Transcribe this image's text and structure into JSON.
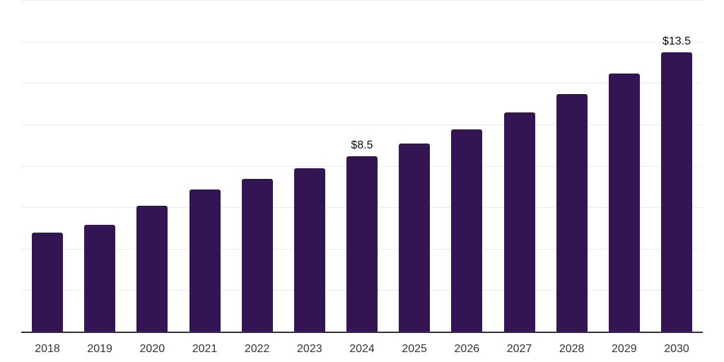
{
  "page": {
    "background_color": "#ffffff"
  },
  "chart_data": {
    "type": "bar",
    "title": "",
    "categories": [
      "2018",
      "2019",
      "2020",
      "2021",
      "2022",
      "2023",
      "2024",
      "2025",
      "2026",
      "2027",
      "2028",
      "2029",
      "2030"
    ],
    "values": [
      4.8,
      5.2,
      6.1,
      6.9,
      7.4,
      7.9,
      8.5,
      9.1,
      9.8,
      10.6,
      11.5,
      12.5,
      13.5
    ],
    "data_labels": [
      "",
      "",
      "",
      "",
      "",
      "",
      "$8.5",
      "",
      "",
      "",
      "",
      "",
      "$13.5"
    ],
    "xlabel": "",
    "ylabel": "",
    "ylim": [
      0,
      16
    ],
    "gridline_step": 2,
    "grid": "horizontal-only",
    "y_tick_labels_visible": false,
    "legend": "none",
    "colors": {
      "bar": "#341553",
      "gridline": "#ebebeb",
      "axis_line": "#333333",
      "x_tick_label": "#333333",
      "data_label": "#0d0d0d"
    }
  }
}
